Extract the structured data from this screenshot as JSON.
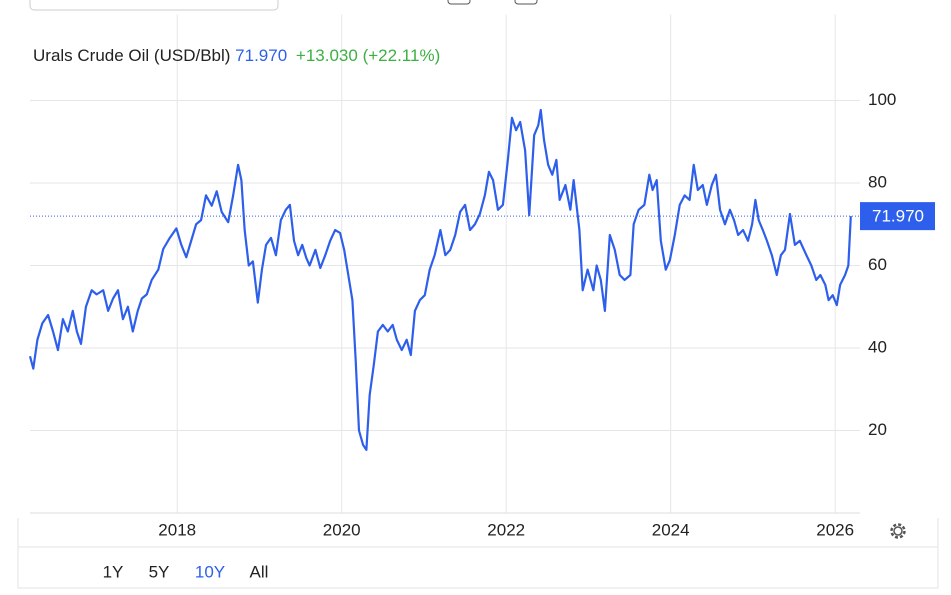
{
  "chart_data": {
    "type": "line",
    "title": "Urals Crude Oil (USD/Bbl)",
    "price_line": {
      "value": 71.97,
      "label": "71.970"
    },
    "change": "+13.030",
    "change_percent": "(+22.11%)",
    "change_color": "#3cb043",
    "x": [
      2016.21,
      2016.25,
      2016.3,
      2016.36,
      2016.43,
      2016.49,
      2016.55,
      2016.61,
      2016.67,
      2016.73,
      2016.78,
      2016.83,
      2016.89,
      2016.96,
      2017.02,
      2017.1,
      2017.16,
      2017.22,
      2017.28,
      2017.34,
      2017.4,
      2017.46,
      2017.52,
      2017.57,
      2017.63,
      2017.69,
      2017.77,
      2017.83,
      2017.91,
      2017.99,
      2018.05,
      2018.11,
      2018.17,
      2018.23,
      2018.29,
      2018.35,
      2018.42,
      2018.48,
      2018.54,
      2018.62,
      2018.68,
      2018.74,
      2018.78,
      2018.82,
      2018.87,
      2018.92,
      2018.98,
      2019.03,
      2019.08,
      2019.14,
      2019.2,
      2019.26,
      2019.32,
      2019.37,
      2019.42,
      2019.47,
      2019.52,
      2019.57,
      2019.61,
      2019.68,
      2019.74,
      2019.8,
      2019.86,
      2019.92,
      2019.98,
      2020.03,
      2020.08,
      2020.13,
      2020.17,
      2020.21,
      2020.26,
      2020.3,
      2020.34,
      2020.39,
      2020.44,
      2020.5,
      2020.56,
      2020.62,
      2020.67,
      2020.73,
      2020.79,
      2020.84,
      2020.89,
      2020.95,
      2021.01,
      2021.07,
      2021.13,
      2021.2,
      2021.26,
      2021.32,
      2021.38,
      2021.44,
      2021.5,
      2021.56,
      2021.62,
      2021.68,
      2021.74,
      2021.79,
      2021.84,
      2021.9,
      2021.96,
      2022.02,
      2022.07,
      2022.12,
      2022.17,
      2022.23,
      2022.28,
      2022.34,
      2022.39,
      2022.42,
      2022.46,
      2022.51,
      2022.56,
      2022.61,
      2022.65,
      2022.72,
      2022.78,
      2022.82,
      2022.89,
      2022.93,
      2022.99,
      2023.06,
      2023.1,
      2023.15,
      2023.2,
      2023.26,
      2023.32,
      2023.38,
      2023.44,
      2023.51,
      2023.55,
      2023.61,
      2023.68,
      2023.74,
      2023.78,
      2023.83,
      2023.88,
      2023.94,
      2023.99,
      2024.05,
      2024.11,
      2024.17,
      2024.23,
      2024.28,
      2024.33,
      2024.39,
      2024.44,
      2024.5,
      2024.55,
      2024.6,
      2024.66,
      2024.72,
      2024.77,
      2024.82,
      2024.88,
      2024.94,
      2024.99,
      2025.03,
      2025.07,
      2025.12,
      2025.17,
      2025.23,
      2025.29,
      2025.34,
      2025.39,
      2025.45,
      2025.51,
      2025.57,
      2025.65,
      2025.71,
      2025.77,
      2025.82,
      2025.88,
      2025.92,
      2025.97,
      2026.02,
      2026.06,
      2026.12,
      2026.16,
      2026.19
    ],
    "series": [
      {
        "color": "#2d5fec",
        "values": [
          38,
          35,
          42,
          46,
          48,
          44,
          39.5,
          47,
          44,
          49,
          44,
          41,
          50,
          54,
          53,
          54,
          49,
          52,
          54,
          47,
          50,
          44,
          49,
          52,
          53,
          56.5,
          59,
          64,
          66.7,
          69,
          65,
          62,
          66,
          70,
          71,
          77,
          74.5,
          78,
          73,
          70.5,
          77,
          84.4,
          80.7,
          68.6,
          60,
          61,
          51,
          59,
          65,
          66.7,
          62.5,
          71,
          73.5,
          74.7,
          66,
          62.5,
          65,
          61.8,
          60,
          63.8,
          59.4,
          62.5,
          66,
          68.6,
          67.9,
          63.8,
          57.7,
          51.6,
          37,
          20,
          16.5,
          15.3,
          28.6,
          35.9,
          44,
          45.6,
          44,
          45.6,
          42,
          39.5,
          42,
          38.3,
          49,
          51.6,
          52.8,
          59,
          62.5,
          68.6,
          62.5,
          63.8,
          67.4,
          73,
          74.7,
          68.6,
          70,
          72.5,
          77,
          82.7,
          80.7,
          73.5,
          74.7,
          85.6,
          95.8,
          92.8,
          94.8,
          87.9,
          72.2,
          91.6,
          94,
          97.7,
          90.4,
          84.4,
          82,
          85.6,
          75.9,
          79.5,
          73.5,
          80.7,
          68.6,
          54,
          59,
          54,
          60,
          56.5,
          49,
          67.4,
          63.8,
          57.7,
          56.5,
          57.7,
          70,
          73.5,
          74.7,
          82,
          78.3,
          80.7,
          66,
          59,
          61.3,
          67.4,
          74.7,
          77,
          75.9,
          84.4,
          78.3,
          79.5,
          74.7,
          79.5,
          82,
          73.5,
          70,
          73.5,
          71,
          67.4,
          68.6,
          66,
          70,
          75.9,
          71,
          68.6,
          66,
          62.5,
          57.7,
          62.5,
          63.8,
          72.5,
          65,
          66,
          62.5,
          60,
          56.5,
          57.7,
          55.3,
          51.6,
          52.8,
          50.4,
          55.3,
          57.7,
          60,
          71.97
        ]
      }
    ],
    "xlim": [
      2016.21,
      2026.32
    ],
    "xticks": [
      2018,
      2020,
      2022,
      2024,
      2026
    ],
    "ylim": [
      0,
      116
    ],
    "yticks": [
      20,
      40,
      60,
      80,
      100
    ],
    "grid": true,
    "range_buttons": [
      "1Y",
      "5Y",
      "10Y",
      "All"
    ],
    "selected_range": 2
  }
}
